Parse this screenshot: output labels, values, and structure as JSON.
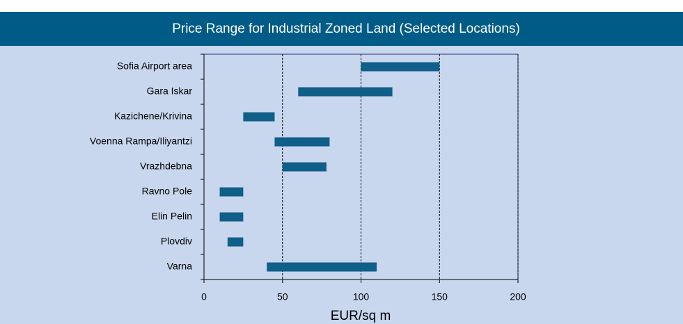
{
  "chart_data": {
    "type": "range-bar",
    "title": "Price Range for Industrial Zoned Land (Selected Locations)",
    "x_label": "EUR/sq m",
    "categories": [
      "Sofia Airport area",
      "Gara Iskar",
      "Kazichene/Krivina",
      "Voenna Rampa/Iliyantzi",
      "Vrazhdebna",
      "Ravno Pole",
      "Elin Pelin",
      "Plovdiv",
      "Varna"
    ],
    "low": [
      100,
      60,
      25,
      45,
      50,
      10,
      10,
      15,
      40
    ],
    "high": [
      150,
      120,
      45,
      80,
      78,
      25,
      25,
      25,
      110
    ],
    "color": "#0f5f88",
    "xlim": [
      0,
      200
    ],
    "xticks": [
      0,
      50,
      100,
      150,
      200
    ],
    "grid": "dashed"
  }
}
